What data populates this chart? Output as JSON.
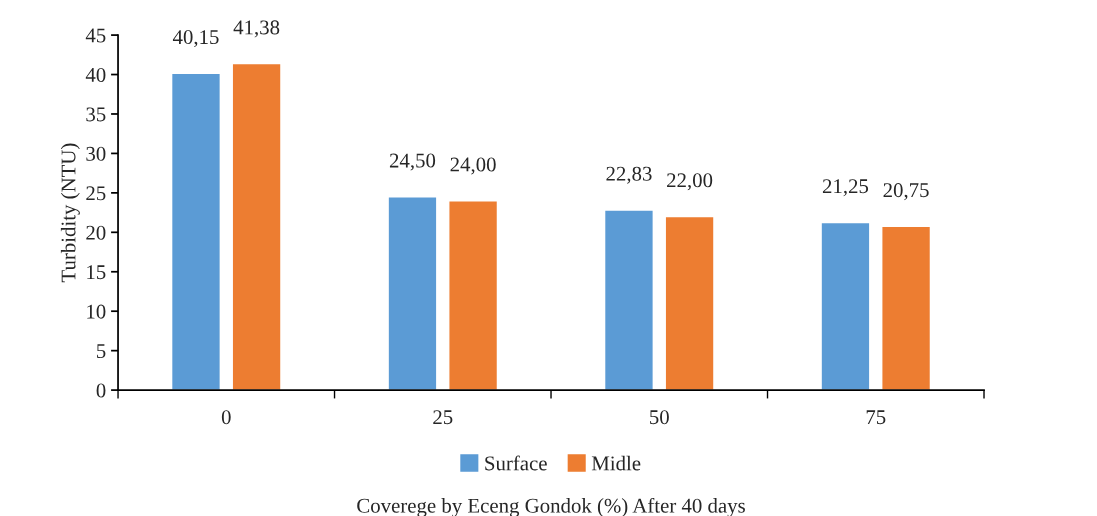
{
  "chart_data": {
    "type": "bar",
    "xlabel": "Coverege by Eceng Gondok (%) After 40 days",
    "ylabel": "Turbidity (NTU)",
    "categories": [
      "0",
      "25",
      "50",
      "75"
    ],
    "series": [
      {
        "name": "Surface",
        "color": "#5b9bd5",
        "values": [
          40.15,
          24.5,
          22.83,
          21.25
        ],
        "value_labels": [
          "40,15",
          "24,50",
          "22,83",
          "21,25"
        ]
      },
      {
        "name": "Midle",
        "color": "#ed7d31",
        "values": [
          41.38,
          24.0,
          22.0,
          20.75
        ],
        "value_labels": [
          "41,38",
          "24,00",
          "22,00",
          "20,75"
        ]
      }
    ],
    "ylim": [
      0,
      45
    ],
    "yticks": [
      0,
      5,
      10,
      15,
      20,
      25,
      30,
      35,
      40,
      45
    ],
    "grid": false,
    "legend": "bottom"
  }
}
